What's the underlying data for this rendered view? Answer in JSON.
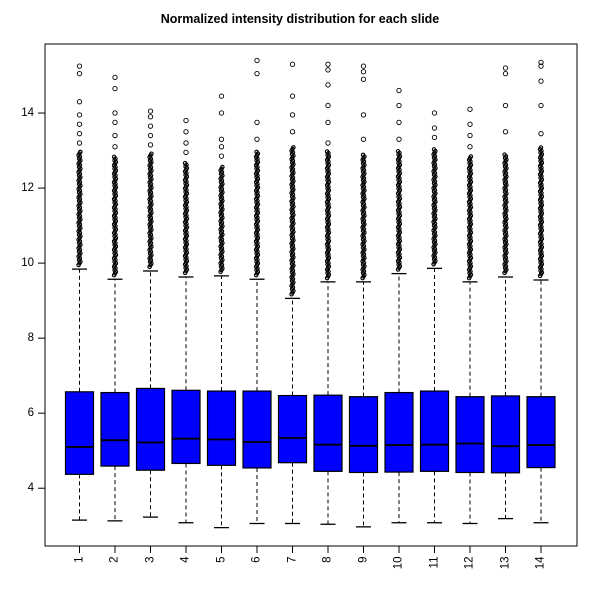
{
  "title": "Normalized intensity distribution for each slide",
  "chart_data": {
    "type": "boxplot",
    "title": "Normalized intensity distribution for each slide",
    "xlabel": "",
    "ylabel": "",
    "categories": [
      "1",
      "2",
      "3",
      "4",
      "5",
      "6",
      "7",
      "8",
      "9",
      "10",
      "11",
      "12",
      "13",
      "14"
    ],
    "y_ticks": [
      4,
      6,
      8,
      10,
      12,
      14
    ],
    "ylim": [
      2.46,
      15.84
    ],
    "grid": false,
    "legend": "none",
    "box_fill_color": "#0000ff",
    "box_stroke_color": "#000000",
    "outlier_color": "#000000",
    "boxes": [
      {
        "label": "1",
        "whisker_low": 3.15,
        "q1": 4.37,
        "median": 5.1,
        "q3": 6.57,
        "whisker_high": 9.84,
        "dense_outliers": {
          "from": 9.95,
          "to": 13.0
        },
        "outliers": [
          13.2,
          13.45,
          13.7,
          13.95,
          14.3,
          15.05,
          15.25
        ]
      },
      {
        "label": "2",
        "whisker_low": 3.13,
        "q1": 4.59,
        "median": 5.28,
        "q3": 6.55,
        "whisker_high": 9.57,
        "dense_outliers": {
          "from": 9.68,
          "to": 12.85
        },
        "outliers": [
          13.1,
          13.4,
          13.75,
          14.0,
          14.65,
          14.95
        ]
      },
      {
        "label": "3",
        "whisker_low": 3.23,
        "q1": 4.48,
        "median": 5.22,
        "q3": 6.66,
        "whisker_high": 9.79,
        "dense_outliers": {
          "from": 9.9,
          "to": 12.95
        },
        "outliers": [
          13.15,
          13.4,
          13.65,
          13.9,
          14.05
        ]
      },
      {
        "label": "4",
        "whisker_low": 3.08,
        "q1": 4.66,
        "median": 5.32,
        "q3": 6.61,
        "whisker_high": 9.63,
        "dense_outliers": {
          "from": 9.74,
          "to": 12.7
        },
        "outliers": [
          12.95,
          13.2,
          13.5,
          13.8
        ]
      },
      {
        "label": "5",
        "whisker_low": 2.95,
        "q1": 4.61,
        "median": 5.3,
        "q3": 6.59,
        "whisker_high": 9.66,
        "dense_outliers": {
          "from": 9.77,
          "to": 12.6
        },
        "outliers": [
          12.85,
          13.1,
          13.3,
          14.0,
          14.45
        ]
      },
      {
        "label": "6",
        "whisker_low": 3.06,
        "q1": 4.54,
        "median": 5.23,
        "q3": 6.59,
        "whisker_high": 9.57,
        "dense_outliers": {
          "from": 9.68,
          "to": 13.0
        },
        "outliers": [
          13.3,
          13.75,
          15.05,
          15.4
        ]
      },
      {
        "label": "7",
        "whisker_low": 3.06,
        "q1": 4.68,
        "median": 5.34,
        "q3": 6.47,
        "whisker_high": 9.06,
        "dense_outliers": {
          "from": 9.17,
          "to": 13.1
        },
        "outliers": [
          13.5,
          13.95,
          14.45,
          15.3
        ]
      },
      {
        "label": "8",
        "whisker_low": 3.04,
        "q1": 4.45,
        "median": 5.16,
        "q3": 6.48,
        "whisker_high": 9.5,
        "dense_outliers": {
          "from": 9.6,
          "to": 13.0
        },
        "outliers": [
          13.2,
          13.75,
          14.2,
          14.75,
          15.15,
          15.3
        ]
      },
      {
        "label": "9",
        "whisker_low": 2.97,
        "q1": 4.42,
        "median": 5.13,
        "q3": 6.44,
        "whisker_high": 9.5,
        "dense_outliers": {
          "from": 9.6,
          "to": 12.9
        },
        "outliers": [
          13.3,
          13.95,
          14.9,
          15.1,
          15.25
        ]
      },
      {
        "label": "10",
        "whisker_low": 3.08,
        "q1": 4.43,
        "median": 5.15,
        "q3": 6.55,
        "whisker_high": 9.72,
        "dense_outliers": {
          "from": 9.83,
          "to": 13.0
        },
        "outliers": [
          13.3,
          13.75,
          14.2,
          14.6
        ]
      },
      {
        "label": "11",
        "whisker_low": 3.08,
        "q1": 4.45,
        "median": 5.16,
        "q3": 6.59,
        "whisker_high": 9.86,
        "dense_outliers": {
          "from": 9.97,
          "to": 13.05
        },
        "outliers": [
          13.35,
          13.6,
          14.0
        ]
      },
      {
        "label": "12",
        "whisker_low": 3.06,
        "q1": 4.42,
        "median": 5.19,
        "q3": 6.44,
        "whisker_high": 9.5,
        "dense_outliers": {
          "from": 9.6,
          "to": 12.85
        },
        "outliers": [
          13.1,
          13.4,
          13.7,
          14.1
        ]
      },
      {
        "label": "13",
        "whisker_low": 3.19,
        "q1": 4.41,
        "median": 5.12,
        "q3": 6.46,
        "whisker_high": 9.63,
        "dense_outliers": {
          "from": 9.74,
          "to": 12.9
        },
        "outliers": [
          13.5,
          14.2,
          15.05,
          15.2
        ]
      },
      {
        "label": "14",
        "whisker_low": 3.08,
        "q1": 4.55,
        "median": 5.15,
        "q3": 6.44,
        "whisker_high": 9.55,
        "dense_outliers": {
          "from": 9.66,
          "to": 13.1
        },
        "outliers": [
          13.45,
          14.2,
          14.85,
          15.25,
          15.35
        ]
      }
    ]
  },
  "layout_note": "R-style boxplot, 14 groups, open-circle outliers stacked above upper whiskers"
}
